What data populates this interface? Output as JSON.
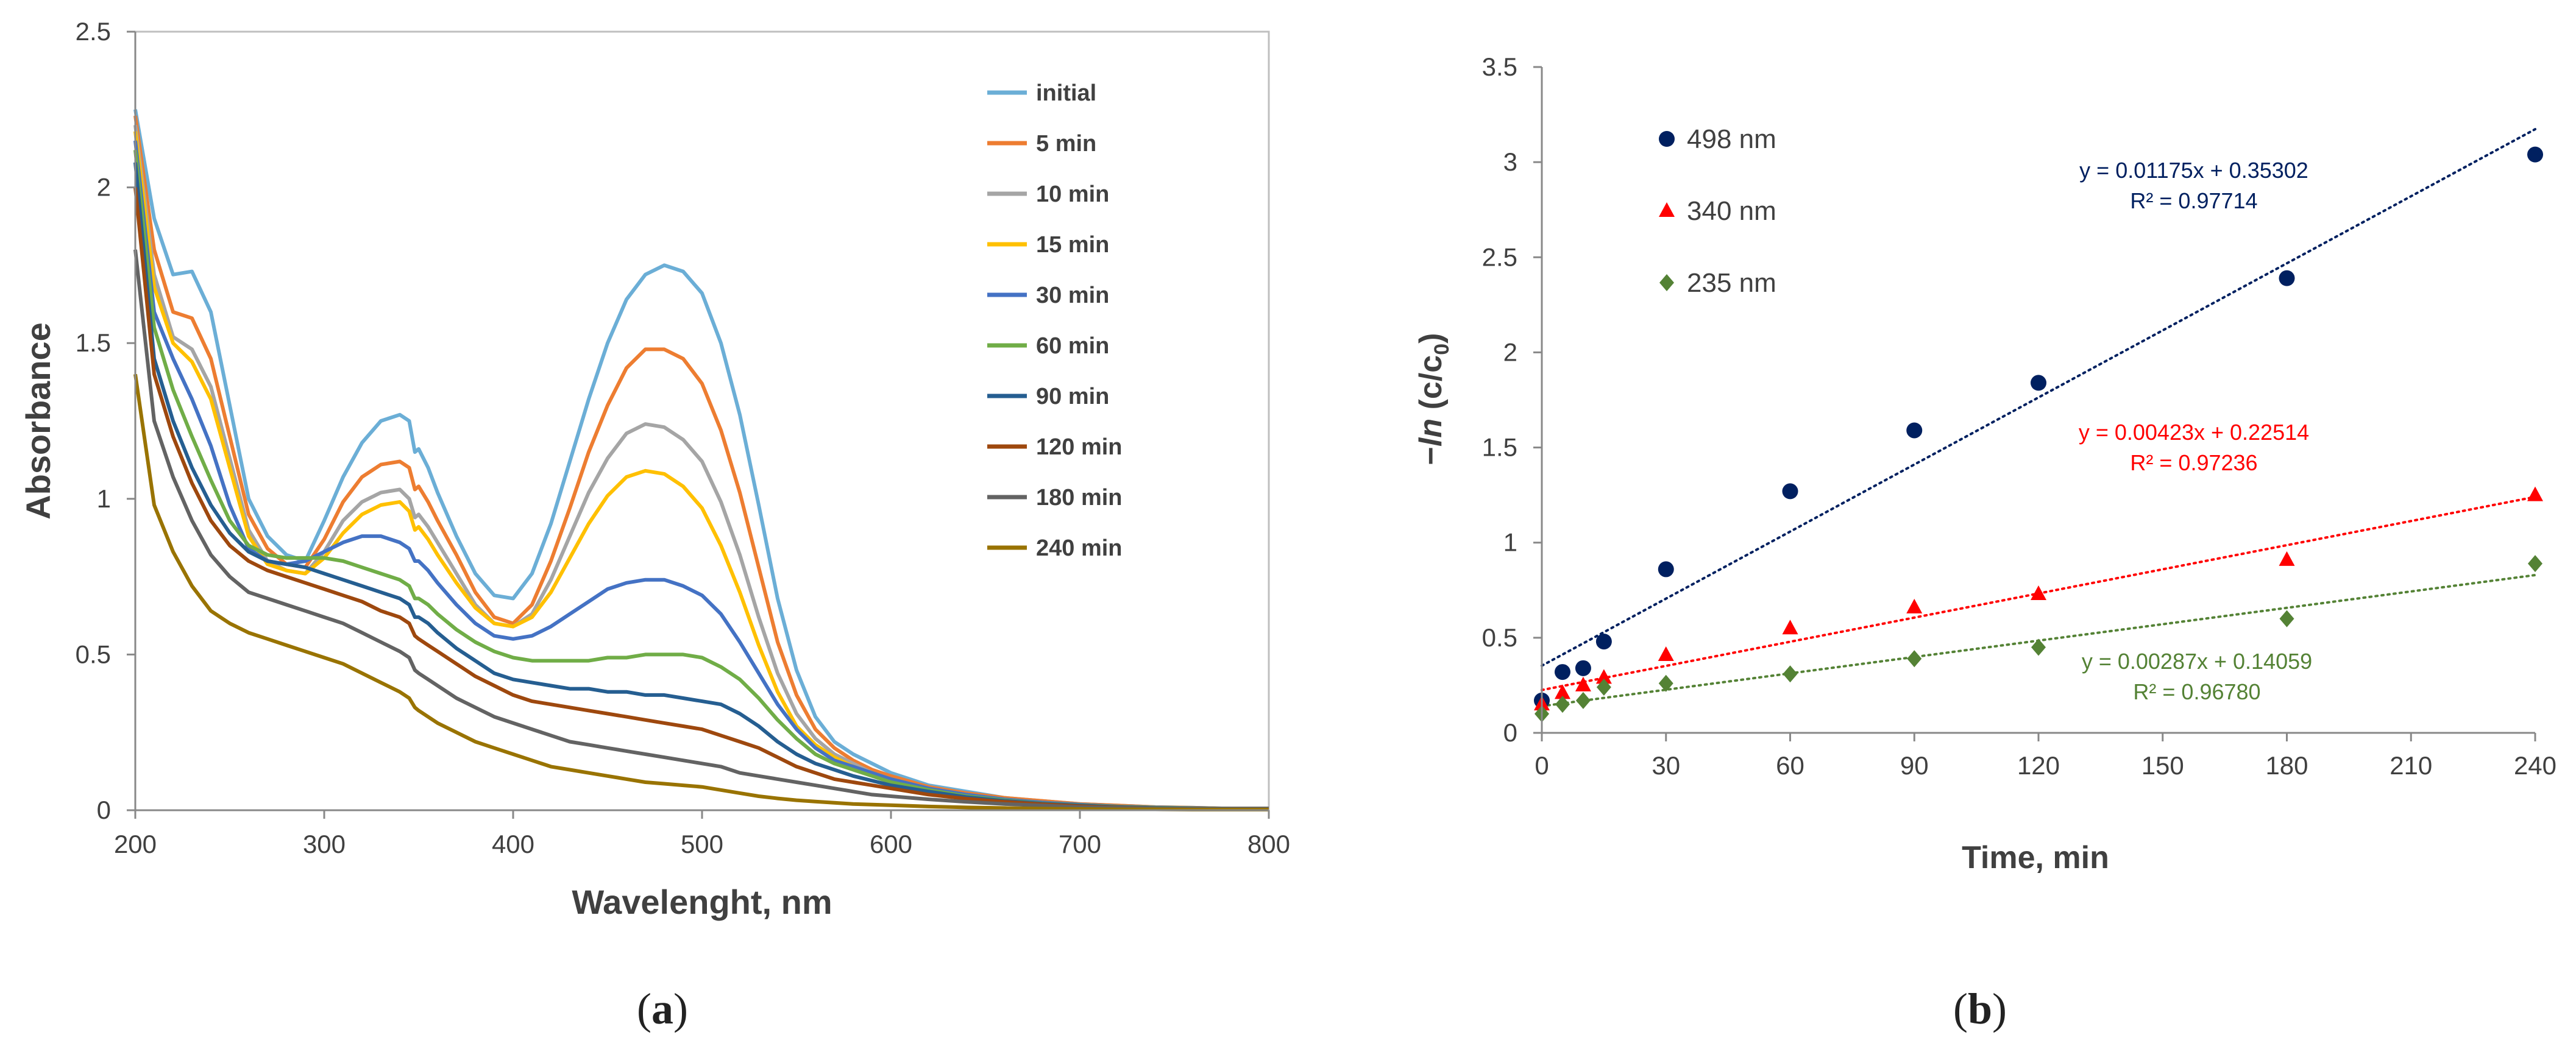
{
  "figure": {
    "caption_a": "a",
    "caption_b": "b"
  },
  "chart_data": [
    {
      "type": "line",
      "panel": "a",
      "xlabel": "Wavelenght, nm",
      "ylabel": "Absorbance",
      "xlim": [
        200,
        800
      ],
      "ylim": [
        0,
        2.5
      ],
      "xticks": [
        200,
        300,
        400,
        500,
        600,
        700,
        800
      ],
      "yticks": [
        0,
        0.5,
        1,
        1.5,
        2,
        2.5
      ],
      "ytick_labels": [
        "0",
        "0.5",
        "1",
        "1.5",
        "2",
        "2.5"
      ],
      "grid": false,
      "legend": "top-right",
      "x": [
        200,
        210,
        220,
        230,
        240,
        250,
        260,
        270,
        280,
        290,
        300,
        310,
        320,
        330,
        340,
        345,
        348,
        350,
        355,
        360,
        370,
        380,
        390,
        400,
        410,
        420,
        430,
        440,
        450,
        460,
        470,
        480,
        490,
        500,
        510,
        520,
        530,
        540,
        550,
        560,
        570,
        580,
        590,
        600,
        620,
        640,
        660,
        680,
        700,
        720,
        740,
        760,
        780,
        800
      ],
      "series": [
        {
          "name": "initial",
          "color": "#6baed6",
          "values": [
            2.25,
            1.9,
            1.72,
            1.73,
            1.6,
            1.3,
            1.0,
            0.88,
            0.82,
            0.8,
            0.93,
            1.07,
            1.18,
            1.25,
            1.27,
            1.25,
            1.15,
            1.16,
            1.1,
            1.02,
            0.88,
            0.76,
            0.69,
            0.68,
            0.76,
            0.92,
            1.12,
            1.32,
            1.5,
            1.64,
            1.72,
            1.75,
            1.73,
            1.66,
            1.5,
            1.27,
            0.98,
            0.68,
            0.45,
            0.3,
            0.22,
            0.18,
            0.15,
            0.12,
            0.08,
            0.06,
            0.04,
            0.03,
            0.02,
            0.015,
            0.01,
            0.008,
            0.005,
            0.005
          ]
        },
        {
          "name": "5 min",
          "color": "#ed7d31",
          "values": [
            2.23,
            1.8,
            1.6,
            1.58,
            1.45,
            1.2,
            0.95,
            0.84,
            0.79,
            0.78,
            0.87,
            0.99,
            1.07,
            1.11,
            1.12,
            1.1,
            1.03,
            1.04,
            0.99,
            0.93,
            0.82,
            0.7,
            0.62,
            0.6,
            0.66,
            0.8,
            0.97,
            1.15,
            1.3,
            1.42,
            1.48,
            1.48,
            1.45,
            1.37,
            1.22,
            1.02,
            0.78,
            0.54,
            0.37,
            0.26,
            0.2,
            0.16,
            0.13,
            0.11,
            0.075,
            0.055,
            0.04,
            0.03,
            0.02,
            0.015,
            0.01,
            0.008,
            0.005,
            0.005
          ]
        },
        {
          "name": "10 min",
          "color": "#a5a5a5",
          "values": [
            2.2,
            1.72,
            1.52,
            1.48,
            1.36,
            1.13,
            0.9,
            0.8,
            0.77,
            0.76,
            0.83,
            0.93,
            0.99,
            1.02,
            1.03,
            1.0,
            0.94,
            0.95,
            0.91,
            0.86,
            0.76,
            0.66,
            0.6,
            0.59,
            0.63,
            0.74,
            0.88,
            1.02,
            1.13,
            1.21,
            1.24,
            1.23,
            1.19,
            1.12,
            0.99,
            0.82,
            0.62,
            0.44,
            0.31,
            0.23,
            0.18,
            0.15,
            0.12,
            0.1,
            0.07,
            0.05,
            0.035,
            0.025,
            0.018,
            0.012,
            0.009,
            0.007,
            0.005,
            0.005
          ]
        },
        {
          "name": "15 min",
          "color": "#ffc000",
          "values": [
            2.18,
            1.68,
            1.5,
            1.44,
            1.32,
            1.1,
            0.88,
            0.79,
            0.77,
            0.76,
            0.81,
            0.89,
            0.95,
            0.98,
            0.99,
            0.96,
            0.9,
            0.91,
            0.87,
            0.82,
            0.73,
            0.65,
            0.6,
            0.59,
            0.62,
            0.7,
            0.81,
            0.92,
            1.01,
            1.07,
            1.09,
            1.08,
            1.04,
            0.97,
            0.85,
            0.7,
            0.53,
            0.38,
            0.27,
            0.21,
            0.17,
            0.14,
            0.12,
            0.1,
            0.07,
            0.05,
            0.035,
            0.025,
            0.018,
            0.012,
            0.009,
            0.007,
            0.005,
            0.005
          ]
        },
        {
          "name": "30 min",
          "color": "#4472c4",
          "values": [
            2.15,
            1.6,
            1.45,
            1.32,
            1.17,
            0.98,
            0.84,
            0.8,
            0.79,
            0.8,
            0.83,
            0.86,
            0.88,
            0.88,
            0.86,
            0.84,
            0.8,
            0.8,
            0.77,
            0.73,
            0.66,
            0.6,
            0.56,
            0.55,
            0.56,
            0.59,
            0.63,
            0.67,
            0.71,
            0.73,
            0.74,
            0.74,
            0.72,
            0.69,
            0.63,
            0.54,
            0.44,
            0.34,
            0.26,
            0.2,
            0.16,
            0.14,
            0.12,
            0.1,
            0.07,
            0.05,
            0.035,
            0.025,
            0.018,
            0.012,
            0.009,
            0.007,
            0.005,
            0.005
          ]
        },
        {
          "name": "60 min",
          "color": "#70ad47",
          "values": [
            2.12,
            1.55,
            1.35,
            1.2,
            1.06,
            0.93,
            0.85,
            0.82,
            0.81,
            0.81,
            0.81,
            0.8,
            0.78,
            0.76,
            0.74,
            0.72,
            0.68,
            0.68,
            0.66,
            0.63,
            0.58,
            0.54,
            0.51,
            0.49,
            0.48,
            0.48,
            0.48,
            0.48,
            0.49,
            0.49,
            0.5,
            0.5,
            0.5,
            0.49,
            0.46,
            0.42,
            0.36,
            0.29,
            0.23,
            0.18,
            0.15,
            0.13,
            0.11,
            0.09,
            0.065,
            0.045,
            0.032,
            0.022,
            0.016,
            0.011,
            0.008,
            0.006,
            0.005,
            0.005
          ]
        },
        {
          "name": "90 min",
          "color": "#255e91",
          "values": [
            2.08,
            1.45,
            1.25,
            1.1,
            0.98,
            0.89,
            0.83,
            0.8,
            0.79,
            0.78,
            0.76,
            0.74,
            0.72,
            0.7,
            0.68,
            0.66,
            0.62,
            0.62,
            0.6,
            0.57,
            0.52,
            0.48,
            0.44,
            0.42,
            0.41,
            0.4,
            0.39,
            0.39,
            0.38,
            0.38,
            0.37,
            0.37,
            0.36,
            0.35,
            0.34,
            0.31,
            0.27,
            0.22,
            0.18,
            0.15,
            0.13,
            0.11,
            0.095,
            0.08,
            0.06,
            0.042,
            0.03,
            0.021,
            0.015,
            0.01,
            0.007,
            0.005,
            0.005,
            0.005
          ]
        },
        {
          "name": "120 min",
          "color": "#9e480e",
          "values": [
            2.0,
            1.4,
            1.2,
            1.05,
            0.93,
            0.85,
            0.8,
            0.77,
            0.75,
            0.73,
            0.71,
            0.69,
            0.67,
            0.64,
            0.62,
            0.6,
            0.56,
            0.55,
            0.53,
            0.51,
            0.47,
            0.43,
            0.4,
            0.37,
            0.35,
            0.34,
            0.33,
            0.32,
            0.31,
            0.3,
            0.29,
            0.28,
            0.27,
            0.26,
            0.24,
            0.22,
            0.2,
            0.17,
            0.14,
            0.12,
            0.1,
            0.09,
            0.08,
            0.07,
            0.05,
            0.037,
            0.027,
            0.019,
            0.013,
            0.009,
            0.006,
            0.005,
            0.005,
            0.005
          ]
        },
        {
          "name": "180 min",
          "color": "#636363",
          "values": [
            1.8,
            1.25,
            1.07,
            0.93,
            0.82,
            0.75,
            0.7,
            0.68,
            0.66,
            0.64,
            0.62,
            0.6,
            0.57,
            0.54,
            0.51,
            0.49,
            0.45,
            0.44,
            0.42,
            0.4,
            0.36,
            0.33,
            0.3,
            0.28,
            0.26,
            0.24,
            0.22,
            0.21,
            0.2,
            0.19,
            0.18,
            0.17,
            0.16,
            0.15,
            0.14,
            0.12,
            0.11,
            0.1,
            0.09,
            0.08,
            0.07,
            0.06,
            0.05,
            0.045,
            0.035,
            0.027,
            0.02,
            0.015,
            0.01,
            0.008,
            0.006,
            0.005,
            0.005,
            0.005
          ]
        },
        {
          "name": "240 min",
          "color": "#997300",
          "values": [
            1.4,
            0.98,
            0.83,
            0.72,
            0.64,
            0.6,
            0.57,
            0.55,
            0.53,
            0.51,
            0.49,
            0.47,
            0.44,
            0.41,
            0.38,
            0.36,
            0.33,
            0.32,
            0.3,
            0.28,
            0.25,
            0.22,
            0.2,
            0.18,
            0.16,
            0.14,
            0.13,
            0.12,
            0.11,
            0.1,
            0.09,
            0.085,
            0.08,
            0.075,
            0.065,
            0.055,
            0.045,
            0.038,
            0.032,
            0.028,
            0.024,
            0.02,
            0.018,
            0.016,
            0.012,
            0.009,
            0.007,
            0.005,
            0.004,
            0.003,
            0.003,
            0.002,
            0.002,
            0.002
          ]
        }
      ]
    },
    {
      "type": "scatter",
      "panel": "b",
      "xlabel": "Time, min",
      "ylabel_prefix": "−",
      "ylabel_ln": "ln",
      "ylabel_open": " (c/c",
      "ylabel_sub": "0",
      "ylabel_close": ")",
      "xlim": [
        0,
        240
      ],
      "ylim": [
        0,
        3.5
      ],
      "xticks": [
        0,
        30,
        60,
        90,
        120,
        150,
        180,
        210,
        240
      ],
      "yticks": [
        0,
        0.5,
        1,
        1.5,
        2,
        2.5,
        3,
        3.5
      ],
      "ytick_labels": [
        "0",
        "0.5",
        "1",
        "1.5",
        "2",
        "2.5",
        "3",
        "3.5"
      ],
      "grid": false,
      "legend": "top-left",
      "x": [
        0,
        5,
        10,
        15,
        30,
        60,
        90,
        120,
        180,
        240
      ],
      "series": [
        {
          "name": "498 nm",
          "color": "#002060",
          "marker": "circle",
          "values": [
            0.17,
            0.32,
            0.34,
            0.48,
            0.86,
            1.27,
            1.59,
            1.84,
            2.39,
            3.04
          ],
          "trend": {
            "slope": 0.01175,
            "intercept": 0.35302,
            "equation": "y = 0.01175x + 0.35302",
            "r2": "R² = 0.97714"
          }
        },
        {
          "name": "340 nm",
          "color": "#ff0000",
          "marker": "triangle",
          "values": [
            0.15,
            0.21,
            0.25,
            0.29,
            0.41,
            0.55,
            0.66,
            0.73,
            0.91,
            1.25
          ],
          "trend": {
            "slope": 0.00423,
            "intercept": 0.22514,
            "equation": "y = 0.00423x + 0.22514",
            "r2": "R² = 0.97236"
          }
        },
        {
          "name": "235 nm",
          "color": "#548235",
          "marker": "diamond",
          "values": [
            0.1,
            0.15,
            0.17,
            0.24,
            0.26,
            0.31,
            0.39,
            0.45,
            0.6,
            0.89
          ],
          "trend": {
            "slope": 0.00287,
            "intercept": 0.14059,
            "equation": "y = 0.00287x + 0.14059",
            "r2": "R² = 0.96780"
          }
        }
      ]
    }
  ]
}
